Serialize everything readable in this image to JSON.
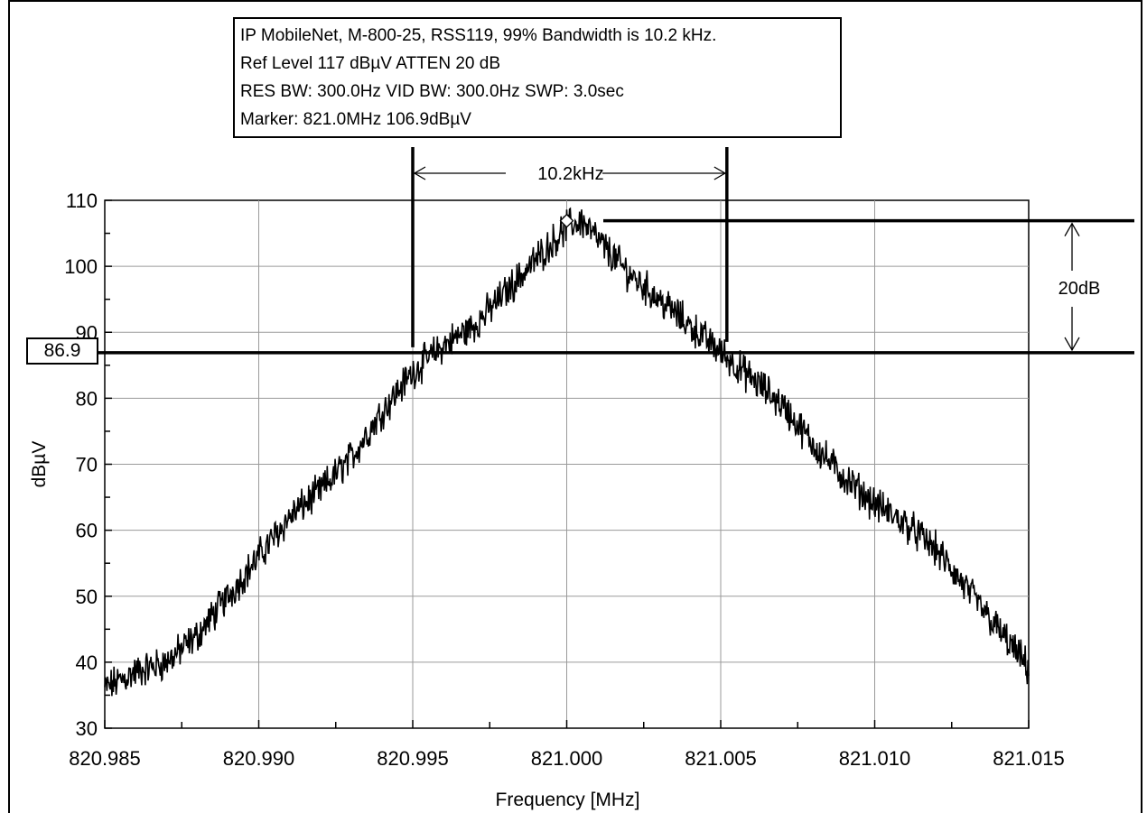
{
  "info_box": {
    "line1": "IP MobileNet, M-800-25, RSS119, 99% Bandwidth is 10.2 kHz.",
    "line2": "Ref Level 117 dBµV    ATTEN 20 dB",
    "line3": "RES BW: 300.0Hz  VID BW: 300.0Hz  SWP: 3.0sec",
    "line4": "Marker: 821.0MHz  106.9dBµV"
  },
  "annotations": {
    "bandwidth_label": "10.2kHz",
    "db_drop_label": "20dB",
    "ref_level_label": "86.9"
  },
  "chart_data": {
    "type": "line",
    "title": "",
    "xlabel": "Frequency [MHz]",
    "ylabel": "dBµV",
    "xlim": [
      820.985,
      821.015
    ],
    "ylim": [
      30,
      110
    ],
    "x_ticks": [
      "820.985",
      "820.990",
      "820.995",
      "821.000",
      "821.005",
      "821.010",
      "821.015"
    ],
    "y_ticks": [
      "30",
      "40",
      "50",
      "60",
      "70",
      "80",
      "90",
      "100",
      "110"
    ],
    "grid": true,
    "series": [
      {
        "color": "#000000",
        "points": [
          [
            820.985,
            36
          ],
          [
            820.986,
            38.5
          ],
          [
            820.987,
            40
          ],
          [
            820.988,
            44
          ],
          [
            820.989,
            50
          ],
          [
            820.99,
            56
          ],
          [
            820.991,
            62
          ],
          [
            820.992,
            66
          ],
          [
            820.993,
            71
          ],
          [
            820.994,
            78
          ],
          [
            820.995,
            84
          ],
          [
            820.996,
            88
          ],
          [
            820.997,
            91
          ],
          [
            820.998,
            96
          ],
          [
            820.999,
            101
          ],
          [
            821.0,
            106
          ],
          [
            821.0005,
            106.9
          ],
          [
            821.001,
            104
          ],
          [
            821.002,
            99
          ],
          [
            821.003,
            95
          ],
          [
            821.004,
            91
          ],
          [
            821.005,
            87
          ],
          [
            821.006,
            83
          ],
          [
            821.007,
            79
          ],
          [
            821.008,
            73
          ],
          [
            821.009,
            68
          ],
          [
            821.01,
            64
          ],
          [
            821.011,
            61
          ],
          [
            821.012,
            57
          ],
          [
            821.013,
            51
          ],
          [
            821.014,
            45
          ],
          [
            821.015,
            39
          ]
        ]
      }
    ],
    "marker": {
      "x": 821.0,
      "y": 106.9
    },
    "peak_level": 106.9,
    "ref_level_line": 86.9,
    "bandwidth_edges": [
      820.995,
      821.0052
    ]
  }
}
